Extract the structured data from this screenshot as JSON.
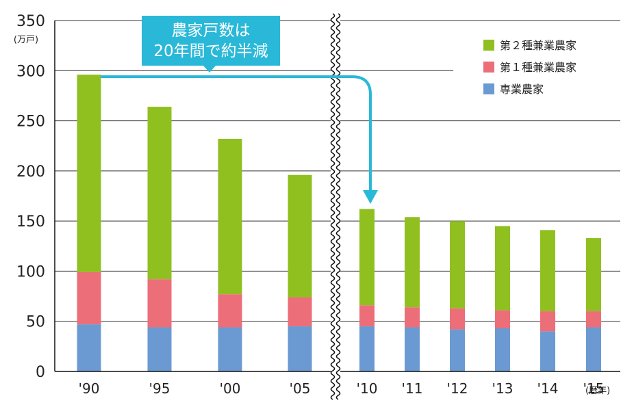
{
  "chart_data": {
    "type": "bar",
    "stacked": true,
    "categories": [
      "'90",
      "'95",
      "'00",
      "'05",
      "'10",
      "'11",
      "'12",
      "'13",
      "'14",
      "'15"
    ],
    "series": [
      {
        "name": "専業農家",
        "color": "#6b9ad2",
        "values": [
          47,
          44,
          44,
          45,
          45,
          44,
          42,
          43,
          40,
          44
        ]
      },
      {
        "name": "第１種兼業農家",
        "color": "#ec6e79",
        "values": [
          52,
          48,
          33,
          29,
          21,
          20,
          21,
          18,
          20,
          16
        ]
      },
      {
        "name": "第２種兼業農家",
        "color": "#90c020",
        "values": [
          197,
          172,
          155,
          122,
          96,
          90,
          87,
          84,
          81,
          73
        ]
      }
    ],
    "ylim": [
      0,
      350
    ],
    "yticks": [
      0,
      50,
      100,
      150,
      200,
      250,
      300,
      350
    ],
    "y_unit": "(万戸)",
    "x_unit": "(暦年)",
    "grid": true,
    "legend_position": "top-right",
    "axis_break": "between '05 and '10",
    "annotation": {
      "lines": [
        "農家戸数は",
        "20年間で約半減"
      ],
      "box_color": "#29b8d8"
    }
  }
}
